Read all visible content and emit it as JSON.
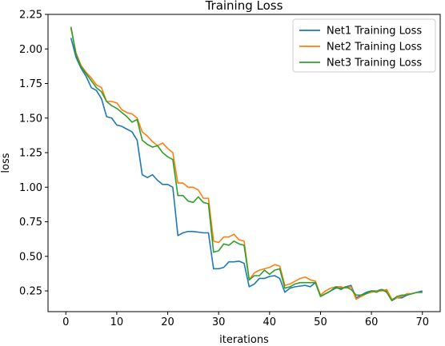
{
  "chart_data": {
    "type": "line",
    "title": "Training Loss",
    "xlabel": "iterations",
    "ylabel": "loss",
    "xlim": [
      -3.5,
      73.5
    ],
    "ylim": [
      0.1,
      2.25
    ],
    "xticks": [
      0,
      10,
      20,
      30,
      40,
      50,
      60,
      70
    ],
    "yticks": [
      0.25,
      0.5,
      0.75,
      1.0,
      1.25,
      1.5,
      1.75,
      2.0,
      2.25
    ],
    "xtick_labels": [
      "0",
      "10",
      "20",
      "30",
      "40",
      "50",
      "60",
      "70"
    ],
    "ytick_labels": [
      "0.25",
      "0.50",
      "0.75",
      "1.00",
      "1.25",
      "1.50",
      "1.75",
      "2.00",
      "2.25"
    ],
    "grid": false,
    "legend_position": "top-right",
    "x": [
      1,
      2,
      3,
      4,
      5,
      6,
      7,
      8,
      9,
      10,
      11,
      12,
      13,
      14,
      15,
      16,
      17,
      18,
      19,
      20,
      21,
      22,
      23,
      24,
      25,
      26,
      27,
      28,
      29,
      30,
      31,
      32,
      33,
      34,
      35,
      36,
      37,
      38,
      39,
      40,
      41,
      42,
      43,
      44,
      45,
      46,
      47,
      48,
      49,
      50,
      51,
      52,
      53,
      54,
      55,
      56,
      57,
      58,
      59,
      60,
      61,
      62,
      63,
      64,
      65,
      66,
      67,
      68,
      69,
      70
    ],
    "series": [
      {
        "name": "Net1 Training Loss",
        "color": "#1f77b4",
        "values": [
          2.08,
          1.94,
          1.86,
          1.8,
          1.72,
          1.7,
          1.64,
          1.51,
          1.5,
          1.45,
          1.44,
          1.42,
          1.4,
          1.34,
          1.09,
          1.07,
          1.09,
          1.05,
          1.02,
          1.02,
          1.0,
          0.65,
          0.67,
          0.68,
          0.68,
          0.675,
          0.67,
          0.67,
          0.41,
          0.41,
          0.42,
          0.46,
          0.46,
          0.465,
          0.45,
          0.28,
          0.3,
          0.34,
          0.34,
          0.355,
          0.36,
          0.34,
          0.24,
          0.27,
          0.28,
          0.285,
          0.29,
          0.28,
          0.31,
          0.21,
          0.23,
          0.25,
          0.27,
          0.27,
          0.28,
          0.29,
          0.2,
          0.22,
          0.24,
          0.25,
          0.25,
          0.26,
          0.25,
          0.18,
          0.2,
          0.2,
          0.22,
          0.23,
          0.24,
          0.25
        ]
      },
      {
        "name": "Net2 Training Loss",
        "color": "#ff7f0e",
        "values": [
          2.15,
          1.97,
          1.88,
          1.83,
          1.79,
          1.74,
          1.72,
          1.62,
          1.62,
          1.61,
          1.56,
          1.54,
          1.53,
          1.5,
          1.4,
          1.37,
          1.33,
          1.3,
          1.32,
          1.28,
          1.25,
          1.03,
          1.03,
          1.0,
          1.0,
          0.98,
          0.92,
          0.92,
          0.61,
          0.6,
          0.64,
          0.64,
          0.66,
          0.62,
          0.61,
          0.33,
          0.38,
          0.4,
          0.41,
          0.42,
          0.44,
          0.43,
          0.29,
          0.3,
          0.32,
          0.34,
          0.35,
          0.33,
          0.32,
          0.22,
          0.25,
          0.27,
          0.28,
          0.28,
          0.27,
          0.28,
          0.19,
          0.21,
          0.23,
          0.24,
          0.25,
          0.25,
          0.26,
          0.19,
          0.2,
          0.21,
          0.23,
          0.23,
          0.24,
          0.24
        ]
      },
      {
        "name": "Net3 Training Loss",
        "color": "#2ca02c",
        "values": [
          2.16,
          1.96,
          1.87,
          1.82,
          1.77,
          1.72,
          1.69,
          1.62,
          1.59,
          1.57,
          1.54,
          1.51,
          1.47,
          1.49,
          1.34,
          1.31,
          1.29,
          1.3,
          1.25,
          1.22,
          1.2,
          0.94,
          0.94,
          0.9,
          0.89,
          0.93,
          0.89,
          0.88,
          0.53,
          0.54,
          0.59,
          0.58,
          0.61,
          0.59,
          0.58,
          0.33,
          0.36,
          0.36,
          0.4,
          0.37,
          0.4,
          0.41,
          0.27,
          0.28,
          0.3,
          0.31,
          0.31,
          0.31,
          0.31,
          0.21,
          0.23,
          0.25,
          0.28,
          0.26,
          0.28,
          0.26,
          0.22,
          0.22,
          0.23,
          0.25,
          0.24,
          0.26,
          0.24,
          0.18,
          0.21,
          0.22,
          0.22,
          0.23,
          0.24,
          0.24
        ]
      }
    ]
  }
}
